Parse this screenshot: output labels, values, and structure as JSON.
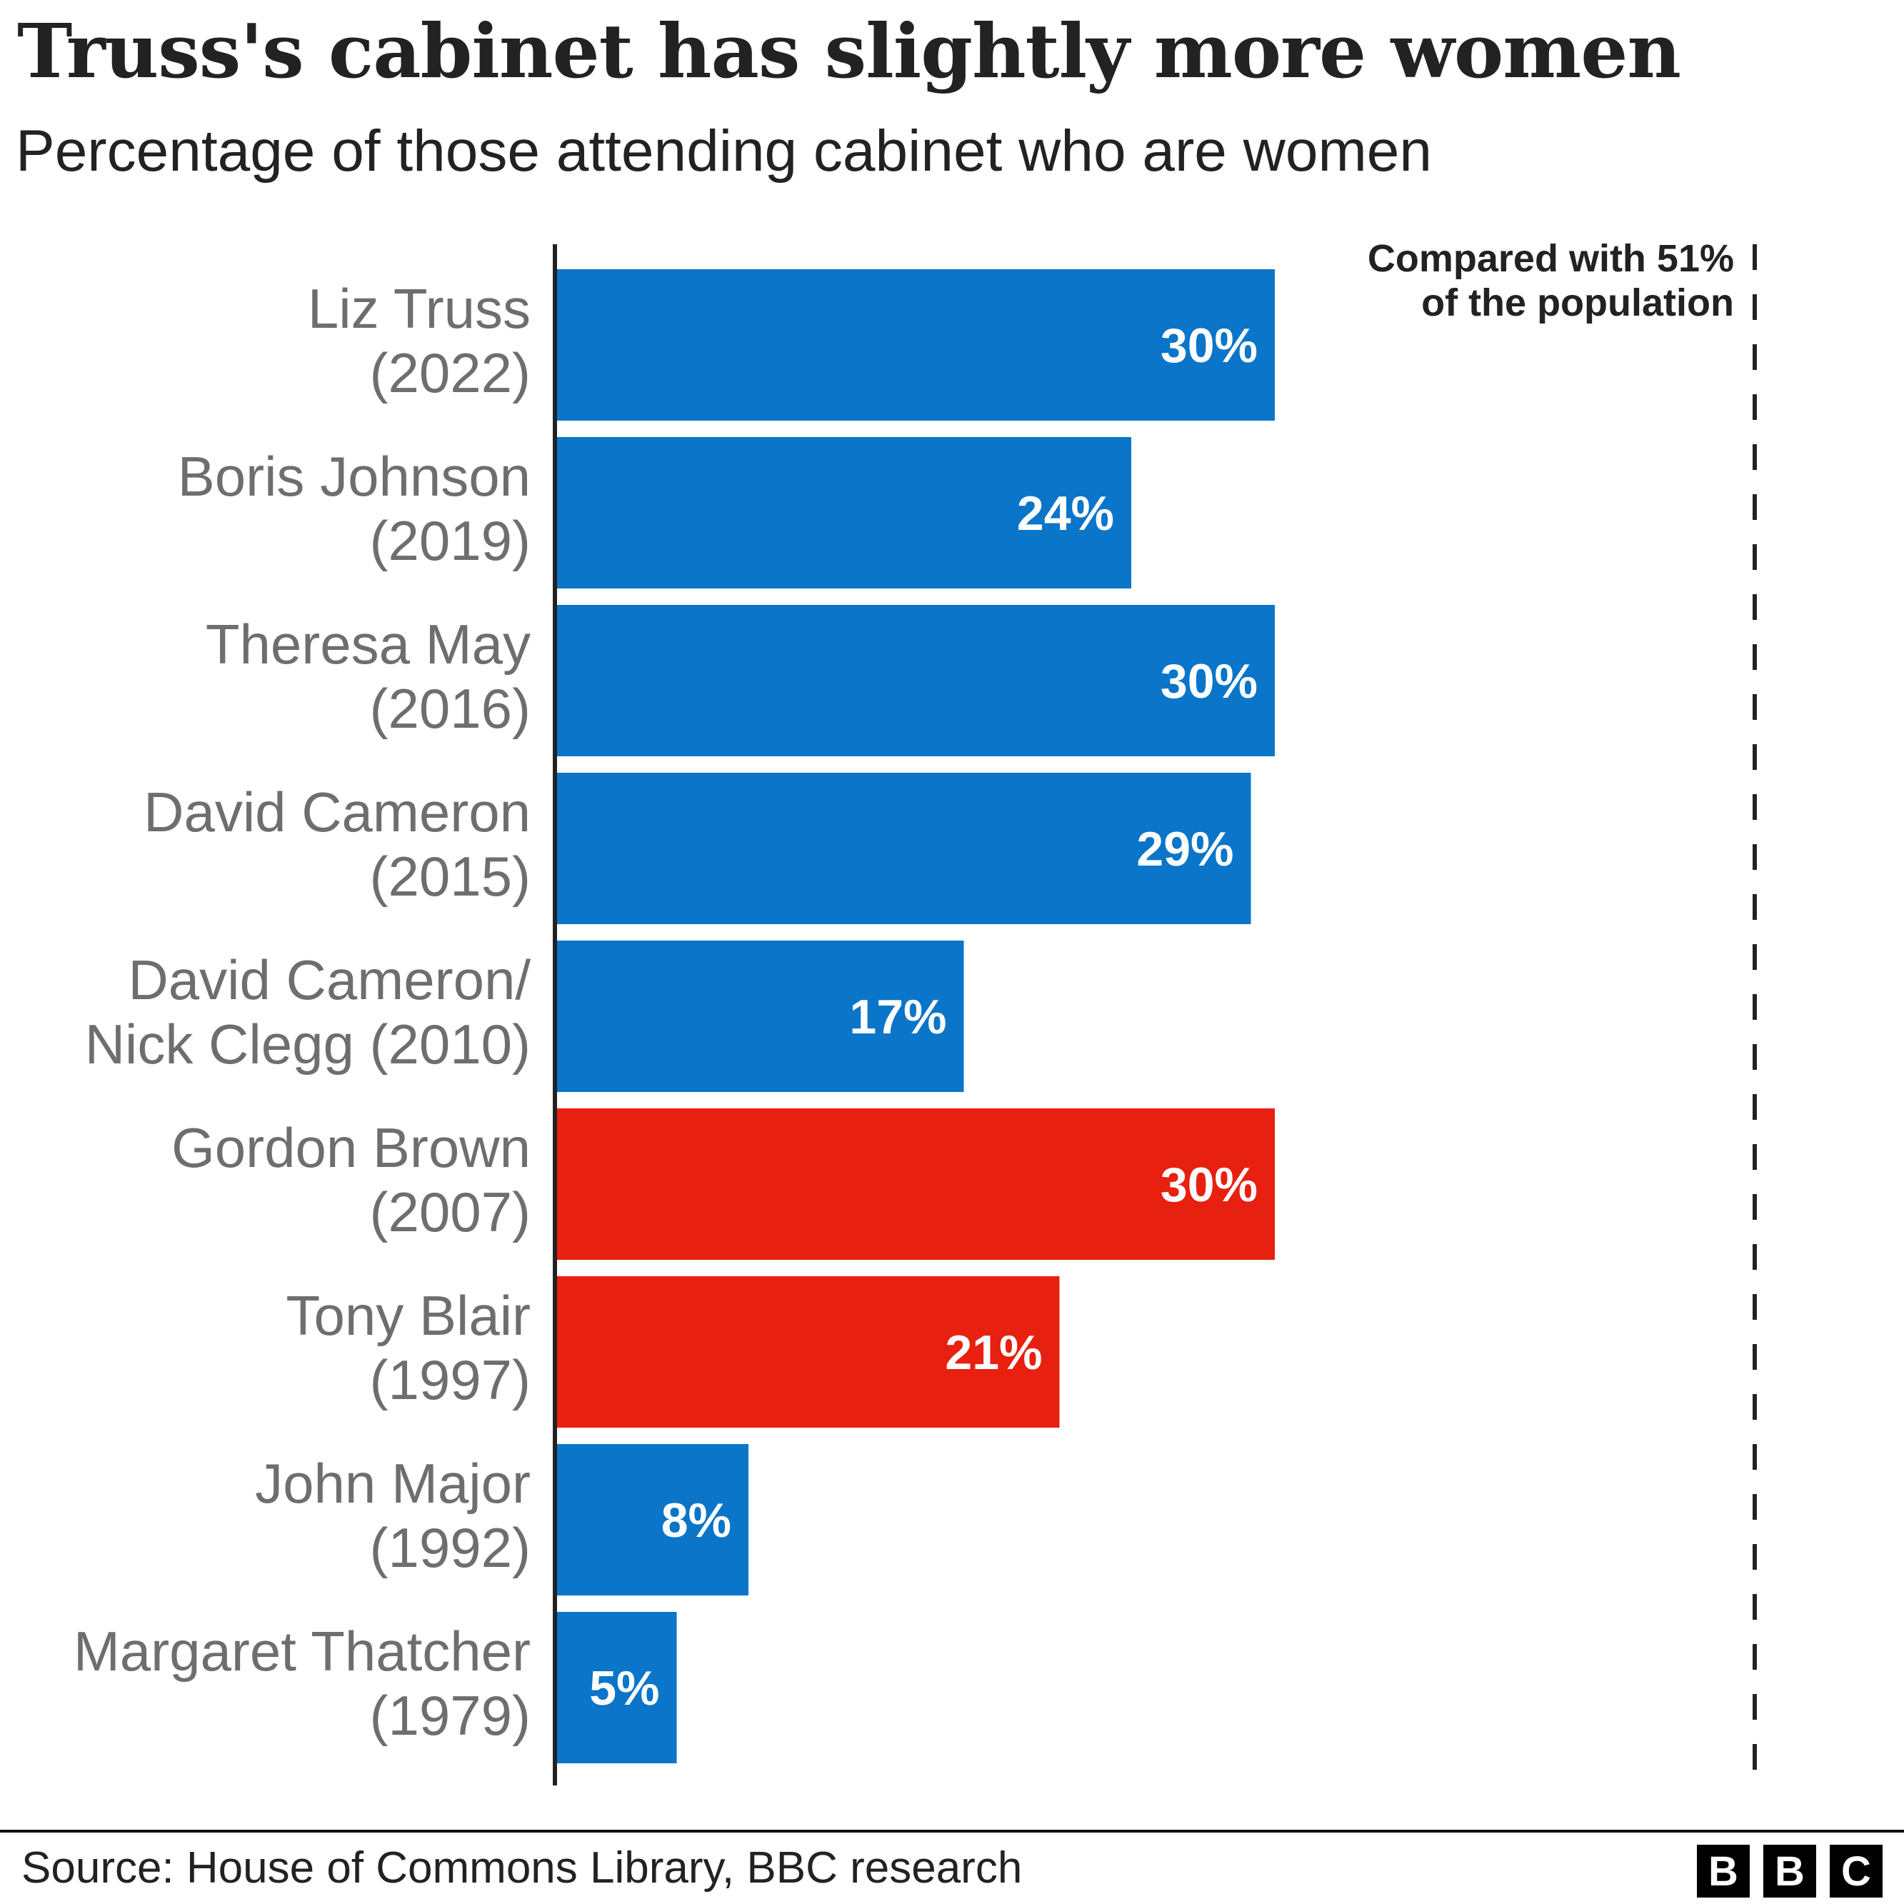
{
  "title": "Truss's cabinet has slightly more women",
  "subtitle": "Percentage of those attending cabinet who are women",
  "source": "Source: House of Commons Library, BBC research",
  "logo": "BBC",
  "chart_data": {
    "type": "bar",
    "orientation": "horizontal",
    "categories": [
      [
        "Liz Truss",
        "(2022)"
      ],
      [
        "Boris Johnson",
        "(2019)"
      ],
      [
        "Theresa May",
        "(2016)"
      ],
      [
        "David Cameron",
        "(2015)"
      ],
      [
        "David Cameron/",
        "Nick Clegg (2010)"
      ],
      [
        "Gordon Brown",
        "(2007)"
      ],
      [
        "Tony Blair",
        "(1997)"
      ],
      [
        "John Major",
        "(1992)"
      ],
      [
        "Margaret Thatcher",
        "(1979)"
      ]
    ],
    "values": [
      30,
      24,
      30,
      29,
      17,
      30,
      21,
      8,
      5
    ],
    "value_labels": [
      "30%",
      "24%",
      "30%",
      "29%",
      "17%",
      "30%",
      "21%",
      "8%",
      "5%"
    ],
    "party_colors": [
      "#0a75c9",
      "#0a75c9",
      "#0a75c9",
      "#0a75c9",
      "#0a75c9",
      "#e82010",
      "#e82010",
      "#0a75c9",
      "#0a75c9"
    ],
    "reference_line": {
      "value": 51,
      "style": "dashed",
      "label": [
        "Compared with 51%",
        "of the population"
      ]
    },
    "xlim": [
      0,
      51
    ],
    "grid": false,
    "legend": "none"
  }
}
